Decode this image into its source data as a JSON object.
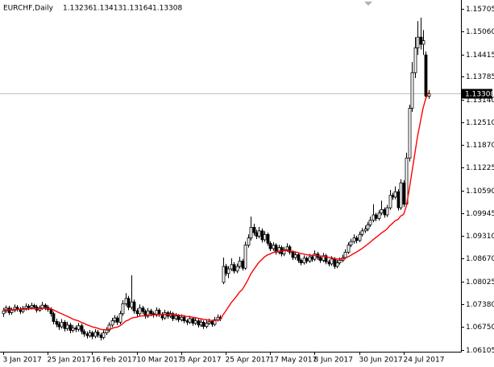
{
  "chart_data": {
    "type": "candlestick",
    "title": "EURCHF,Daily",
    "categories": [
      "3 Jan 2017",
      null,
      null,
      null,
      null,
      null,
      null,
      null,
      null,
      null,
      null,
      null,
      null,
      null,
      null,
      null,
      "25 Jan 2017",
      null,
      null,
      null,
      null,
      null,
      null,
      null,
      null,
      null,
      null,
      null,
      null,
      null,
      null,
      null,
      "16 Feb 2017",
      null,
      null,
      null,
      null,
      null,
      null,
      null,
      null,
      null,
      null,
      null,
      null,
      null,
      null,
      null,
      "10 Mar 2017",
      null,
      null,
      null,
      null,
      null,
      null,
      null,
      null,
      null,
      null,
      null,
      null,
      null,
      null,
      null,
      "3 Apr 2017",
      null,
      null,
      null,
      null,
      null,
      null,
      null,
      null,
      null,
      null,
      null,
      null,
      null,
      null,
      null,
      "25 Apr 2017",
      null,
      null,
      null,
      null,
      null,
      null,
      null,
      null,
      null,
      null,
      null,
      null,
      null,
      null,
      null,
      "17 May 2017",
      null,
      null,
      null,
      null,
      null,
      null,
      null,
      null,
      null,
      null,
      null,
      null,
      null,
      null,
      null,
      "8 Jun 2017",
      null,
      null,
      null,
      null,
      null,
      null,
      null,
      null,
      null,
      null,
      null,
      null,
      null,
      null,
      null,
      "30 Jun 2017",
      null,
      null,
      null,
      null,
      null,
      null,
      null,
      null,
      null,
      null,
      null,
      null,
      null,
      null,
      null,
      "24 Jul 2017",
      null,
      null,
      null,
      null,
      null,
      null,
      null,
      null,
      null
    ],
    "ohlc": [
      [
        1.0712,
        1.0728,
        1.0703,
        1.072
      ],
      [
        1.072,
        1.0735,
        1.0714,
        1.0728
      ],
      [
        1.0728,
        1.0734,
        1.0708,
        1.0715
      ],
      [
        1.0715,
        1.0729,
        1.0709,
        1.0722
      ],
      [
        1.0722,
        1.0738,
        1.0716,
        1.073
      ],
      [
        1.073,
        1.0736,
        1.0718,
        1.0725
      ],
      [
        1.0725,
        1.0731,
        1.0711,
        1.0718
      ],
      [
        1.0718,
        1.0734,
        1.0713,
        1.0727
      ],
      [
        1.0727,
        1.0741,
        1.0721,
        1.0733
      ],
      [
        1.0733,
        1.0739,
        1.0722,
        1.0729
      ],
      [
        1.0729,
        1.0743,
        1.0724,
        1.0735
      ],
      [
        1.0735,
        1.074,
        1.0725,
        1.0731
      ],
      [
        1.0731,
        1.0737,
        1.0715,
        1.0722
      ],
      [
        1.0722,
        1.0735,
        1.0717,
        1.0728
      ],
      [
        1.0728,
        1.0745,
        1.0723,
        1.0736
      ],
      [
        1.0736,
        1.0741,
        1.0722,
        1.073
      ],
      [
        1.073,
        1.0736,
        1.0717,
        1.0724
      ],
      [
        1.0724,
        1.073,
        1.0704,
        1.0712
      ],
      [
        1.0712,
        1.0718,
        1.0682,
        1.069
      ],
      [
        1.069,
        1.0698,
        1.0674,
        1.0682
      ],
      [
        1.0682,
        1.069,
        1.0666,
        1.0675
      ],
      [
        1.0675,
        1.0697,
        1.067,
        1.0688
      ],
      [
        1.0688,
        1.0694,
        1.0662,
        1.067
      ],
      [
        1.067,
        1.0689,
        1.0664,
        1.068
      ],
      [
        1.068,
        1.0686,
        1.0657,
        1.0665
      ],
      [
        1.0665,
        1.068,
        1.0659,
        1.0672
      ],
      [
        1.0672,
        1.0679,
        1.066,
        1.0668
      ],
      [
        1.0668,
        1.0686,
        1.0662,
        1.0678
      ],
      [
        1.0678,
        1.0684,
        1.0654,
        1.0662
      ],
      [
        1.0662,
        1.0668,
        1.0647,
        1.0655
      ],
      [
        1.0655,
        1.0662,
        1.0642,
        1.065
      ],
      [
        1.065,
        1.0666,
        1.0645,
        1.0658
      ],
      [
        1.0658,
        1.0664,
        1.064,
        1.0648
      ],
      [
        1.0648,
        1.0668,
        1.0643,
        1.066
      ],
      [
        1.066,
        1.0666,
        1.0645,
        1.0652
      ],
      [
        1.0652,
        1.0658,
        1.0637,
        1.0645
      ],
      [
        1.0645,
        1.0666,
        1.064,
        1.0658
      ],
      [
        1.0658,
        1.0674,
        1.0652,
        1.0666
      ],
      [
        1.0666,
        1.0688,
        1.066,
        1.068
      ],
      [
        1.068,
        1.07,
        1.0674,
        1.0692
      ],
      [
        1.0692,
        1.0708,
        1.0686,
        1.07
      ],
      [
        1.07,
        1.0706,
        1.068,
        1.0688
      ],
      [
        1.0688,
        1.072,
        1.0682,
        1.0712
      ],
      [
        1.0712,
        1.075,
        1.0706,
        1.074
      ],
      [
        1.074,
        1.077,
        1.0734,
        1.0755
      ],
      [
        1.0755,
        1.0762,
        1.0722,
        1.073
      ],
      [
        1.073,
        1.082,
        1.0724,
        1.0745
      ],
      [
        1.0745,
        1.0752,
        1.0712,
        1.072
      ],
      [
        1.072,
        1.0727,
        1.0704,
        1.0712
      ],
      [
        1.0712,
        1.0738,
        1.0706,
        1.0728
      ],
      [
        1.0728,
        1.0734,
        1.0711,
        1.0718
      ],
      [
        1.0718,
        1.0724,
        1.0698,
        1.0705
      ],
      [
        1.0705,
        1.0728,
        1.07,
        1.072
      ],
      [
        1.072,
        1.0726,
        1.0705,
        1.0712
      ],
      [
        1.0712,
        1.0718,
        1.0701,
        1.0708
      ],
      [
        1.0708,
        1.073,
        1.0703,
        1.0722
      ],
      [
        1.0722,
        1.0727,
        1.0703,
        1.071
      ],
      [
        1.071,
        1.0716,
        1.0693,
        1.07
      ],
      [
        1.07,
        1.0723,
        1.0695,
        1.0715
      ],
      [
        1.0715,
        1.072,
        1.0698,
        1.0705
      ],
      [
        1.0705,
        1.072,
        1.07,
        1.0712
      ],
      [
        1.0712,
        1.0717,
        1.0691,
        1.0698
      ],
      [
        1.0698,
        1.0714,
        1.0693,
        1.0706
      ],
      [
        1.0706,
        1.0711,
        1.0688,
        1.0695
      ],
      [
        1.0695,
        1.071,
        1.069,
        1.0702
      ],
      [
        1.0702,
        1.0708,
        1.0685,
        1.0692
      ],
      [
        1.0692,
        1.0697,
        1.068,
        1.0688
      ],
      [
        1.0688,
        1.0706,
        1.0683,
        1.0698
      ],
      [
        1.0698,
        1.0703,
        1.0678,
        1.0685
      ],
      [
        1.0685,
        1.07,
        1.068,
        1.0692
      ],
      [
        1.0692,
        1.0697,
        1.0673,
        1.068
      ],
      [
        1.068,
        1.0696,
        1.0675,
        1.0688
      ],
      [
        1.0688,
        1.0693,
        1.0669,
        1.0676
      ],
      [
        1.0676,
        1.0693,
        1.0671,
        1.0685
      ],
      [
        1.0685,
        1.0698,
        1.068,
        1.069
      ],
      [
        1.069,
        1.0695,
        1.0675,
        1.0682
      ],
      [
        1.0682,
        1.0703,
        1.0677,
        1.0695
      ],
      [
        1.0695,
        1.071,
        1.069,
        1.0702
      ],
      [
        1.0702,
        1.0708,
        1.0691,
        1.0698
      ],
      [
        1.08,
        1.087,
        1.0795,
        1.0845
      ],
      [
        1.0845,
        1.0852,
        1.0818,
        1.0825
      ],
      [
        1.0825,
        1.0846,
        1.0812,
        1.0838
      ],
      [
        1.0838,
        1.0868,
        1.0832,
        1.085
      ],
      [
        1.085,
        1.0857,
        1.0825,
        1.0832
      ],
      [
        1.0832,
        1.0853,
        1.0826,
        1.0845
      ],
      [
        1.0845,
        1.0872,
        1.0839,
        1.086
      ],
      [
        1.086,
        1.0866,
        1.0833,
        1.084
      ],
      [
        1.084,
        1.0915,
        1.0835,
        1.0905
      ],
      [
        1.0905,
        1.0935,
        1.0898,
        1.0925
      ],
      [
        1.0925,
        1.0985,
        1.0918,
        1.0955
      ],
      [
        1.0955,
        1.0965,
        1.0932,
        1.094
      ],
      [
        1.094,
        1.0948,
        1.0922,
        1.093
      ],
      [
        1.093,
        1.0956,
        1.0924,
        1.0945
      ],
      [
        1.0945,
        1.0952,
        1.0912,
        1.092
      ],
      [
        1.092,
        1.0944,
        1.0914,
        1.0935
      ],
      [
        1.0935,
        1.094,
        1.0903,
        1.091
      ],
      [
        1.091,
        1.0916,
        1.0888,
        1.0895
      ],
      [
        1.0895,
        1.0913,
        1.0889,
        1.0905
      ],
      [
        1.0905,
        1.091,
        1.0878,
        1.0885
      ],
      [
        1.0885,
        1.0906,
        1.0879,
        1.0898
      ],
      [
        1.0898,
        1.0904,
        1.0873,
        1.088
      ],
      [
        1.088,
        1.09,
        1.0874,
        1.0892
      ],
      [
        1.0892,
        1.091,
        1.0886,
        1.09
      ],
      [
        1.09,
        1.0906,
        1.0878,
        1.0885
      ],
      [
        1.0885,
        1.089,
        1.0863,
        1.087
      ],
      [
        1.087,
        1.0886,
        1.0864,
        1.0878
      ],
      [
        1.0878,
        1.0883,
        1.0855,
        1.0862
      ],
      [
        1.0862,
        1.0868,
        1.0848,
        1.0855
      ],
      [
        1.0855,
        1.0876,
        1.085,
        1.0868
      ],
      [
        1.0868,
        1.0873,
        1.0853,
        1.086
      ],
      [
        1.086,
        1.088,
        1.0855,
        1.0872
      ],
      [
        1.0872,
        1.0878,
        1.0858,
        1.0865
      ],
      [
        1.0865,
        1.089,
        1.086,
        1.088
      ],
      [
        1.088,
        1.0886,
        1.0863,
        1.087
      ],
      [
        1.087,
        1.0876,
        1.0855,
        1.0862
      ],
      [
        1.0862,
        1.0883,
        1.0857,
        1.0875
      ],
      [
        1.0875,
        1.088,
        1.0851,
        1.0858
      ],
      [
        1.0858,
        1.0864,
        1.0845,
        1.0852
      ],
      [
        1.0852,
        1.0874,
        1.0847,
        1.0866
      ],
      [
        1.0866,
        1.0871,
        1.0838,
        1.0845
      ],
      [
        1.0845,
        1.0863,
        1.084,
        1.0855
      ],
      [
        1.0855,
        1.087,
        1.085,
        1.0862
      ],
      [
        1.0862,
        1.0878,
        1.0857,
        1.087
      ],
      [
        1.087,
        1.0893,
        1.0865,
        1.0885
      ],
      [
        1.0885,
        1.0913,
        1.088,
        1.0905
      ],
      [
        1.0905,
        1.0923,
        1.0899,
        1.0915
      ],
      [
        1.0915,
        1.0935,
        1.0909,
        1.0925
      ],
      [
        1.0925,
        1.0931,
        1.091,
        1.0918
      ],
      [
        1.0918,
        1.0943,
        1.0913,
        1.0935
      ],
      [
        1.0935,
        1.0953,
        1.0929,
        1.0945
      ],
      [
        1.0945,
        1.096,
        1.0939,
        1.095
      ],
      [
        1.095,
        1.097,
        1.0944,
        1.0962
      ],
      [
        1.0962,
        1.0985,
        1.0956,
        1.0975
      ],
      [
        1.0975,
        1.102,
        1.0969,
        1.099
      ],
      [
        1.099,
        1.0996,
        1.0972,
        1.098
      ],
      [
        1.098,
        1.1003,
        1.0974,
        1.0995
      ],
      [
        1.0995,
        1.103,
        1.0989,
        1.1005
      ],
      [
        1.1005,
        1.1011,
        1.0982,
        1.099
      ],
      [
        1.099,
        1.1018,
        1.0984,
        1.101
      ],
      [
        1.101,
        1.106,
        1.1004,
        1.1045
      ],
      [
        1.1045,
        1.1052,
        1.1032,
        1.104
      ],
      [
        1.104,
        1.107,
        1.1034,
        1.1055
      ],
      [
        1.1055,
        1.1062,
        1.1002,
        1.101
      ],
      [
        1.101,
        1.109,
        1.1004,
        1.108
      ],
      [
        1.108,
        1.1088,
        1.1012,
        1.102
      ],
      [
        1.102,
        1.1165,
        1.1015,
        1.115
      ],
      [
        1.115,
        1.13,
        1.114,
        1.129
      ],
      [
        1.129,
        1.142,
        1.128,
        1.139
      ],
      [
        1.139,
        1.149,
        1.1375,
        1.146
      ],
      [
        1.146,
        1.1535,
        1.144,
        1.149
      ],
      [
        1.149,
        1.1545,
        1.1455,
        1.147
      ],
      [
        1.147,
        1.151,
        1.144,
        1.148
      ],
      [
        1.144,
        1.145,
        1.1315,
        1.1324
      ],
      [
        1.13236,
        1.13413,
        1.13164,
        1.13308
      ]
    ],
    "ma": {
      "color": "#ff0000",
      "values": [
        1.0722,
        1.0723,
        1.0723,
        1.0723,
        1.0724,
        1.0724,
        1.0724,
        1.0724,
        1.0725,
        1.0725,
        1.0726,
        1.0726,
        1.0726,
        1.0726,
        1.0727,
        1.0727,
        1.0727,
        1.0726,
        1.0723,
        1.0719,
        1.0715,
        1.0712,
        1.0708,
        1.0705,
        1.0701,
        1.0697,
        1.0694,
        1.0692,
        1.0688,
        1.0685,
        1.0681,
        1.0678,
        1.0675,
        1.0673,
        1.0671,
        1.0668,
        1.0667,
        1.0667,
        1.0668,
        1.067,
        1.0673,
        1.0674,
        1.0678,
        1.0684,
        1.0691,
        1.0694,
        1.0699,
        1.0701,
        1.0702,
        1.0705,
        1.0706,
        1.0706,
        1.0708,
        1.0708,
        1.0708,
        1.071,
        1.071,
        1.0709,
        1.071,
        1.071,
        1.071,
        1.0709,
        1.0709,
        1.0708,
        1.0707,
        1.0706,
        1.0704,
        1.0704,
        1.0702,
        1.0701,
        1.0699,
        1.0698,
        1.0696,
        1.0695,
        1.0694,
        1.0693,
        1.0693,
        1.0694,
        1.0694,
        1.0708,
        1.0719,
        1.0731,
        1.0743,
        1.0752,
        1.0762,
        1.0773,
        1.078,
        1.0793,
        1.0807,
        1.0823,
        1.0835,
        1.0846,
        1.0857,
        1.0864,
        1.0872,
        1.0877,
        1.088,
        1.0884,
        1.0886,
        1.0888,
        1.0888,
        1.0889,
        1.089,
        1.0889,
        1.0887,
        1.0886,
        1.0884,
        1.0881,
        1.088,
        1.0878,
        1.0877,
        1.0876,
        1.0876,
        1.0875,
        1.0874,
        1.0874,
        1.0872,
        1.087,
        1.087,
        1.0867,
        1.0866,
        1.0866,
        1.0866,
        1.0868,
        1.0872,
        1.0876,
        1.0881,
        1.0885,
        1.089,
        1.0895,
        1.0901,
        1.0907,
        1.0913,
        1.092,
        1.0926,
        1.0932,
        1.0939,
        1.0944,
        1.095,
        1.0959,
        1.0966,
        1.0974,
        1.0977,
        1.0987,
        1.0991,
        1.1015,
        1.106,
        1.111,
        1.116,
        1.121,
        1.125,
        1.129,
        1.1318,
        1.1334
      ]
    },
    "colors": {
      "bull": "#ffffff",
      "bear": "#000000",
      "outline": "#000000"
    },
    "ylim": [
      1.0605,
      1.159
    ],
    "yticks": [
      1.06105,
      {
        "value": 1.0675,
        "label": "1.06750"
      },
      {
        "value": 1.0738,
        "label": "1.07380"
      },
      1.08025,
      {
        "value": 1.0867,
        "label": "1.08670"
      },
      {
        "value": 1.0931,
        "label": "1.09310"
      },
      1.09945,
      {
        "value": 1.1059,
        "label": "1.10590"
      },
      1.11225,
      {
        "value": 1.1187,
        "label": "1.11870"
      },
      {
        "value": 1.1251,
        "label": "1.12510"
      },
      {
        "value": 1.1314,
        "label": "1.13140"
      },
      1.13785,
      1.14415,
      {
        "value": 1.1506,
        "label": "1.15060"
      },
      1.15705
    ]
  }
}
